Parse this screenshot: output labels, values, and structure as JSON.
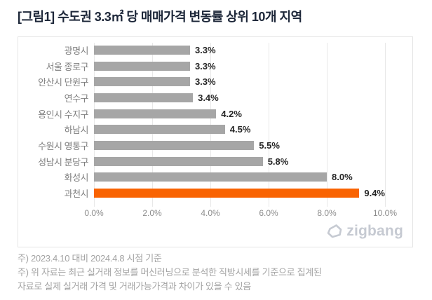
{
  "title": "[그림1] 수도권 3.3㎡ 당 매매가격 변동률 상위 10개 지역",
  "chart_data": {
    "type": "bar",
    "orientation": "horizontal",
    "title": "[그림1] 수도권 3.3㎡ 당 매매가격 변동률 상위 10개 지역",
    "categories": [
      "광명시",
      "서울 종로구",
      "안산시 단원구",
      "연수구",
      "용인시 수지구",
      "하남시",
      "수원시 영통구",
      "성남시 분당구",
      "화성시",
      "과천시"
    ],
    "values": [
      3.3,
      3.3,
      3.3,
      3.4,
      4.2,
      4.5,
      5.5,
      5.8,
      8.0,
      9.4
    ],
    "value_labels": [
      "3.3%",
      "3.3%",
      "3.3%",
      "3.4%",
      "4.2%",
      "4.5%",
      "5.5%",
      "5.8%",
      "8.0%",
      "9.4%"
    ],
    "xlim": [
      0,
      10
    ],
    "x_ticks": [
      "0.0%",
      "2.0%",
      "4.0%",
      "6.0%",
      "8.0%",
      "10.0%"
    ],
    "x_tick_values": [
      0,
      2,
      4,
      6,
      8,
      10
    ],
    "grid": true,
    "legend_position": "none",
    "bar_color": "#a6a6a6",
    "highlight_color": "#f96302",
    "highlight_index": 9,
    "value_label_color": "#262626",
    "category_label_color": "#7f7f7f"
  },
  "watermark": {
    "label": "zigbang"
  },
  "notes": [
    "주) 2023.4.10 대비 2024.4.8 시점 기준",
    "주) 위 자료는 최근 실거래 정보를 머신러닝으로 분석한 직방시세를 기준으로 집계된",
    "자료로 실제 실거래 가격 및 거래가능가격과 차이가 있을 수 있음"
  ]
}
